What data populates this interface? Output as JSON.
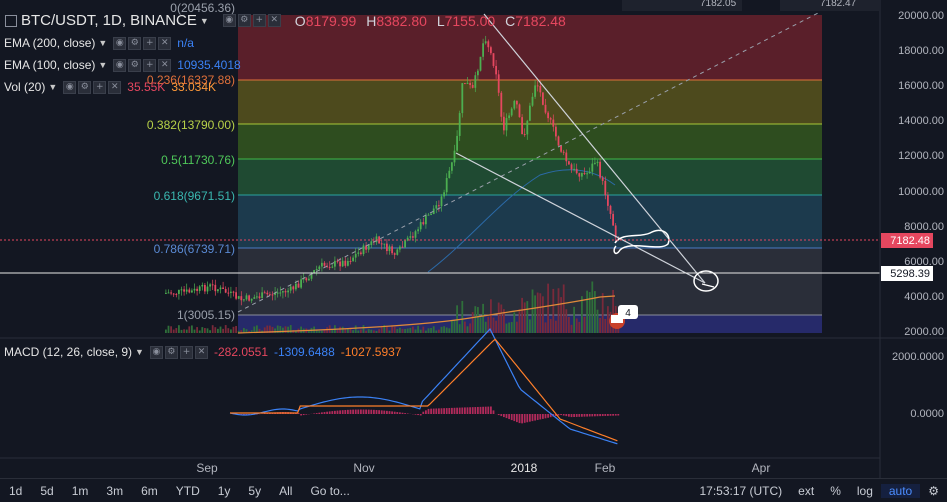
{
  "header": {
    "symbol": "BTC/USDT, 1D, BINANCE",
    "o_label": "O",
    "o": "8179.99",
    "h_label": "H",
    "h": "8382.80",
    "l_label": "L",
    "l": "7155.00",
    "c_label": "C",
    "c": "7182.48"
  },
  "indicators": {
    "ema200": {
      "label": "EMA (200, close)",
      "value": "n/a"
    },
    "ema100": {
      "label": "EMA (100, close)",
      "value": "10935.4018"
    },
    "vol": {
      "label": "Vol (20)",
      "v1": "35.55K",
      "v2": "33.034K"
    },
    "macd": {
      "label": "MACD (12, 26, close, 9)",
      "v1": "-282.0551",
      "v2": "-1309.6488",
      "v3": "-1027.5937"
    }
  },
  "fib": {
    "l0": "0(20456.36)",
    "l0236": "0.236(16337.88)",
    "l0382": "0.382(13790.00)",
    "l05": "0.5(11730.76)",
    "l0618": "0.618(9671.51)",
    "l0786": "0.786(6739.71)",
    "l1": "1(3005.15)"
  },
  "price_axis": {
    "ticks": [
      "20000.00",
      "18000.00",
      "16000.00",
      "14000.00",
      "12000.00",
      "10000.00",
      "8000.00",
      "6000.00",
      "4000.00",
      "2000.00"
    ],
    "current_price": "7182.48",
    "line_price": "5298.39"
  },
  "macd_axis": {
    "ticks": [
      "2000.0000",
      "0.0000"
    ]
  },
  "time_axis": {
    "labels": [
      "Sep",
      "Nov",
      "2018",
      "Feb",
      "Apr"
    ]
  },
  "badge": {
    "count": "4"
  },
  "top_partial": {
    "a": "7182.05",
    "b": "7182.47"
  },
  "toolbar": {
    "timeframes": [
      "1d",
      "5d",
      "1m",
      "3m",
      "6m",
      "YTD",
      "1y",
      "5y",
      "All"
    ],
    "goto": "Go to...",
    "time": "17:53:17 (UTC)",
    "ext": "ext",
    "pct": "%",
    "log": "log",
    "auto": "auto"
  },
  "colors": {
    "bg": "#131722",
    "up": "#4caf50",
    "down": "#e5475f",
    "current_price": "#e5475f",
    "macd": "#3b82f6",
    "signal": "#ff7f2a"
  }
}
